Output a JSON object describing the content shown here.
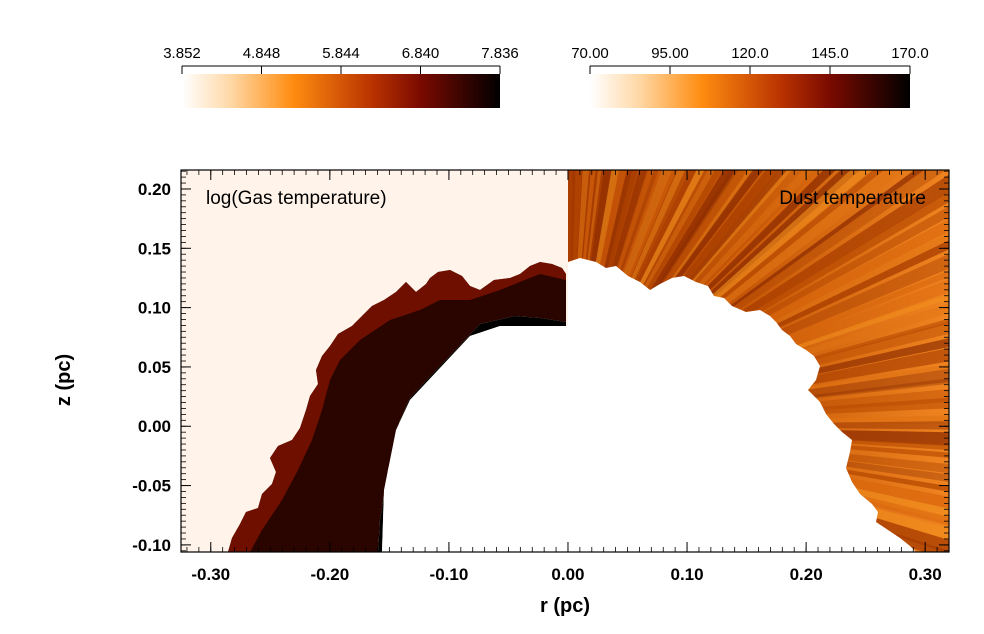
{
  "chart_data": {
    "type": "heatmap",
    "panels": [
      {
        "name": "left",
        "label": "log(Gas temperature)",
        "r_range": [
          -0.32,
          0.0
        ]
      },
      {
        "name": "right",
        "label": "Dust temperature",
        "r_range": [
          0.0,
          0.32
        ]
      }
    ],
    "xlabel": "r (pc)",
    "ylabel": "z (pc)",
    "xlim": [
      -0.325,
      0.32
    ],
    "ylim": [
      -0.106,
      0.216
    ],
    "x_ticks": [
      -0.3,
      -0.2,
      -0.1,
      0.0,
      0.1,
      0.2,
      0.3
    ],
    "x_tick_labels": [
      "-0.30",
      "-0.20",
      "-0.10",
      "0.00",
      "0.10",
      "0.20",
      "0.30"
    ],
    "y_ticks": [
      -0.1,
      -0.05,
      0.0,
      0.05,
      0.1,
      0.15,
      0.2
    ],
    "y_tick_labels": [
      "-0.10",
      "-0.05",
      "0.00",
      "0.05",
      "0.10",
      "0.15",
      "0.20"
    ],
    "colorbars": [
      {
        "name": "gas-temperature-colorbar",
        "range": [
          3.852,
          7.836
        ],
        "ticks": [
          3.852,
          4.848,
          5.844,
          6.84,
          7.836
        ],
        "tick_labels": [
          "3.852",
          "4.848",
          "5.844",
          "6.840",
          "7.836"
        ]
      },
      {
        "name": "dust-temperature-colorbar",
        "range": [
          70.0,
          170.0
        ],
        "ticks": [
          70,
          95,
          120,
          145,
          170
        ],
        "tick_labels": [
          "70.00",
          "95.00",
          "120.0",
          "145.0",
          "170.0"
        ]
      }
    ]
  },
  "colors": {
    "cmap_low": "#fff4ea",
    "cmap_mid": "#ff8c10",
    "cmap_dark": "#8a0b00",
    "cmap_high": "#000000",
    "gas_background": "#fff3ea",
    "dust_base": "#d96a10"
  }
}
